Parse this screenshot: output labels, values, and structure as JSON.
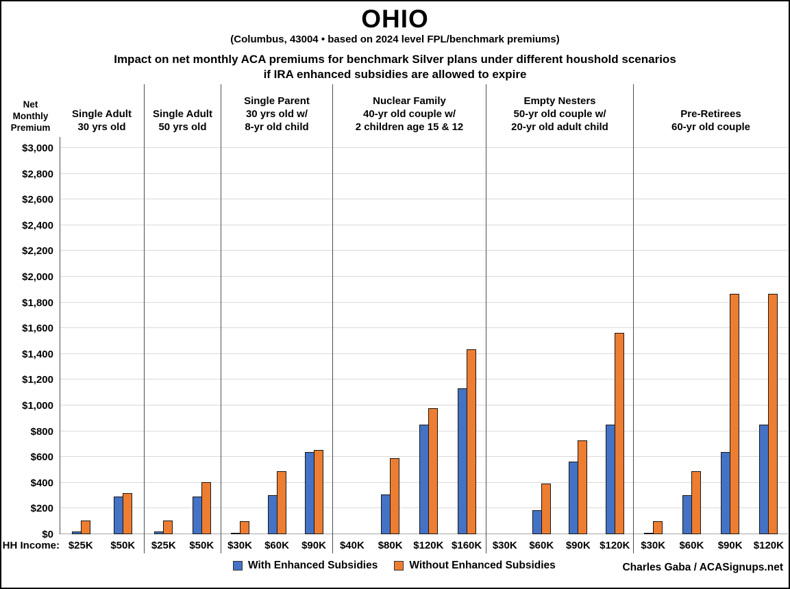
{
  "header": {
    "title": "OHIO",
    "subtitle": "(Columbus, 43004 • based on 2024 level FPL/benchmark premiums)",
    "chart_title_line1": "Impact on net monthly ACA premiums for benchmark Silver plans under different houshold scenarios",
    "chart_title_line2": "if IRA enhanced subsidies are allowed to expire"
  },
  "axis": {
    "y_label_lines": [
      "Net",
      "Monthly",
      "Premium"
    ],
    "hh_income_label": "HH Income:"
  },
  "legend": {
    "with_label": "With Enhanced Subsidies",
    "without_label": "Without Enhanced Subsidies",
    "with_color": "#4472C4",
    "without_color": "#ED7D31"
  },
  "credit": "Charles Gaba / ACASignups.net",
  "chart_data": {
    "type": "bar",
    "title": "Impact on net monthly ACA premiums for benchmark Silver plans under different houshold scenarios if IRA enhanced subsidies are allowed to expire",
    "location": "Columbus, OH 43004",
    "ylabel": "Net Monthly Premium",
    "xlabel": "HH Income",
    "ylim": [
      0,
      3000
    ],
    "ytick_step": 200,
    "grid": true,
    "legend_position": "bottom",
    "series_names": [
      "With Enhanced Subsidies",
      "Without Enhanced Subsidies"
    ],
    "yticks": [
      {
        "value": 0,
        "label": "$0"
      },
      {
        "value": 200,
        "label": "$200"
      },
      {
        "value": 400,
        "label": "$400"
      },
      {
        "value": 600,
        "label": "$600"
      },
      {
        "value": 800,
        "label": "$800"
      },
      {
        "value": 1000,
        "label": "$1,000"
      },
      {
        "value": 1200,
        "label": "$1,200"
      },
      {
        "value": 1400,
        "label": "$1,400"
      },
      {
        "value": 1600,
        "label": "$1,600"
      },
      {
        "value": 1800,
        "label": "$1,800"
      },
      {
        "value": 2000,
        "label": "$2,000"
      },
      {
        "value": 2200,
        "label": "$2,200"
      },
      {
        "value": 2400,
        "label": "$2,400"
      },
      {
        "value": 2600,
        "label": "$2,600"
      },
      {
        "value": 2800,
        "label": "$2,800"
      },
      {
        "value": 3000,
        "label": "$3,000"
      }
    ],
    "panels": [
      {
        "name": "single-adult-30",
        "label_lines": [
          "Single Adult",
          "30 yrs old"
        ],
        "incomes": [
          "$25K",
          "$50K"
        ],
        "with": [
          20,
          290
        ],
        "without": [
          104,
          320
        ]
      },
      {
        "name": "single-adult-50",
        "label_lines": [
          "Single Adult",
          "50 yrs old"
        ],
        "incomes": [
          "$25K",
          "$50K"
        ],
        "with": [
          20,
          290
        ],
        "without": [
          104,
          406
        ]
      },
      {
        "name": "single-parent-30",
        "label_lines": [
          "Single Parent",
          "30 yrs old w/",
          "8-yr old child"
        ],
        "incomes": [
          "$30K",
          "$60K",
          "$90K"
        ],
        "with": [
          5,
          305,
          636
        ],
        "without": [
          103,
          489,
          656
        ]
      },
      {
        "name": "nuclear-family-40",
        "label_lines": [
          "Nuclear Family",
          "40-yr old couple w/",
          "2 children age 15 & 12"
        ],
        "incomes": [
          "$40K",
          "$80K",
          "$120K",
          "$160K"
        ],
        "with": [
          null,
          310,
          849,
          1133
        ],
        "without": [
          null,
          589,
          978,
          1436
        ]
      },
      {
        "name": "empty-nesters-50",
        "label_lines": [
          "Empty Nesters",
          "50-yr old couple w/",
          "20-yr old adult child"
        ],
        "incomes": [
          "$30K",
          "$60K",
          "$90K",
          "$120K"
        ],
        "with": [
          null,
          185,
          566,
          849
        ],
        "without": [
          null,
          396,
          731,
          1566
        ]
      },
      {
        "name": "pre-retirees-60",
        "label_lines": [
          "Pre-Retirees",
          "60-yr old couple"
        ],
        "incomes": [
          "$30K",
          "$60K",
          "$90K",
          "$120K"
        ],
        "with": [
          8,
          305,
          636,
          849
        ],
        "without": [
          103,
          489,
          1866,
          1866
        ]
      }
    ]
  }
}
